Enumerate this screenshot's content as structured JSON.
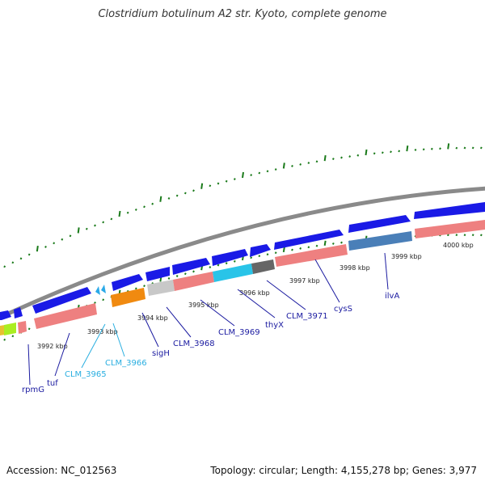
{
  "title": "Clostridium botulinum A2 str. Kyoto, complete genome",
  "footer": {
    "accession": "Accession: NC_012563",
    "summary": "Topology: circular; Length: 4,155,278 bp; Genes: 3,977"
  },
  "colors": {
    "backbone": "#8a8a8a",
    "tick": "#1a7a1a",
    "cds_forward": "#1a1ae6",
    "cds_reverse_label_highlight": "#29c4e8",
    "label": "#1a1aa0",
    "label_highlight": "#29aee0"
  },
  "scale_labels": [
    {
      "text": "3992 kbp"
    },
    {
      "text": "3993 kbp"
    },
    {
      "text": "3994 kbp"
    },
    {
      "text": "3995 kbp"
    },
    {
      "text": "3996 kbp"
    },
    {
      "text": "3997 kbp"
    },
    {
      "text": "3998 kbp"
    },
    {
      "text": "3999 kbp"
    },
    {
      "text": "4000 kbp"
    }
  ],
  "gene_labels": [
    {
      "text": "rpmG",
      "highlight": false
    },
    {
      "text": "tuf",
      "highlight": false
    },
    {
      "text": "CLM_3965",
      "highlight": true
    },
    {
      "text": "CLM_3966",
      "highlight": true
    },
    {
      "text": "sigH",
      "highlight": false
    },
    {
      "text": "CLM_3968",
      "highlight": false
    },
    {
      "text": "CLM_3969",
      "highlight": false
    },
    {
      "text": "thyX",
      "highlight": false
    },
    {
      "text": "CLM_3971",
      "highlight": false
    },
    {
      "text": "cysS",
      "highlight": false
    },
    {
      "text": "ilvA",
      "highlight": false
    }
  ]
}
